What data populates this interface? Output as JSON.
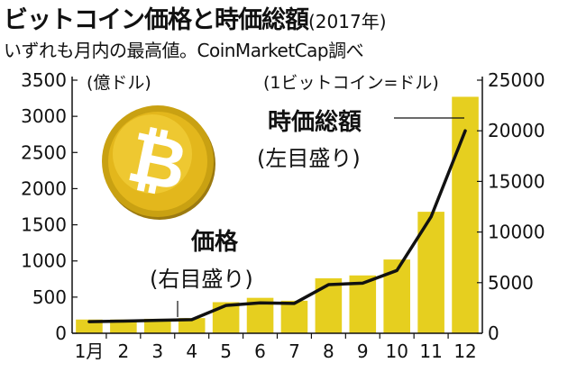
{
  "header": {
    "title": "ビットコイン価格と時価総額",
    "title_year": "(2017年)",
    "subtitle": "いずれも月内の最高値。CoinMarketCap調べ"
  },
  "chart_data": {
    "type": "bar",
    "categories": [
      "1月",
      "2",
      "3",
      "4",
      "5",
      "6",
      "7",
      "8",
      "9",
      "10",
      "11",
      "12"
    ],
    "series": [
      {
        "name": "時価総額",
        "axis": "left",
        "unit": "億ドル",
        "type": "bar",
        "values": [
          190,
          190,
          200,
          210,
          430,
          490,
          450,
          760,
          800,
          1020,
          1680,
          3270
        ],
        "color": "#e6cf1f"
      },
      {
        "name": "価格",
        "axis": "right",
        "unit": "ドル",
        "type": "line",
        "values": [
          1150,
          1200,
          1280,
          1350,
          2750,
          3000,
          2950,
          4800,
          4950,
          6200,
          11500,
          20000
        ],
        "color": "#111111"
      }
    ],
    "left_axis": {
      "ticks": [
        "0",
        "500",
        "1000",
        "1500",
        "2000",
        "2500",
        "3000",
        "3500"
      ],
      "ylim": [
        0,
        3500
      ],
      "unit_label": "(億ドル)"
    },
    "right_axis": {
      "ticks": [
        "0",
        "5000",
        "10000",
        "15000",
        "20000",
        "25000"
      ],
      "ylim": [
        0,
        25000
      ],
      "unit_label": "(1ビットコイン=ドル)"
    },
    "annotations": {
      "market_cap_title": "時価総額",
      "market_cap_note": "(左目盛り)",
      "price_title": "価格",
      "price_note": "(右目盛り)"
    },
    "grid": false,
    "colors": {
      "bar": "#e6cf1f",
      "line": "#111111",
      "coin": "#e3b71c"
    },
    "icon": "bitcoin-coin-icon"
  }
}
